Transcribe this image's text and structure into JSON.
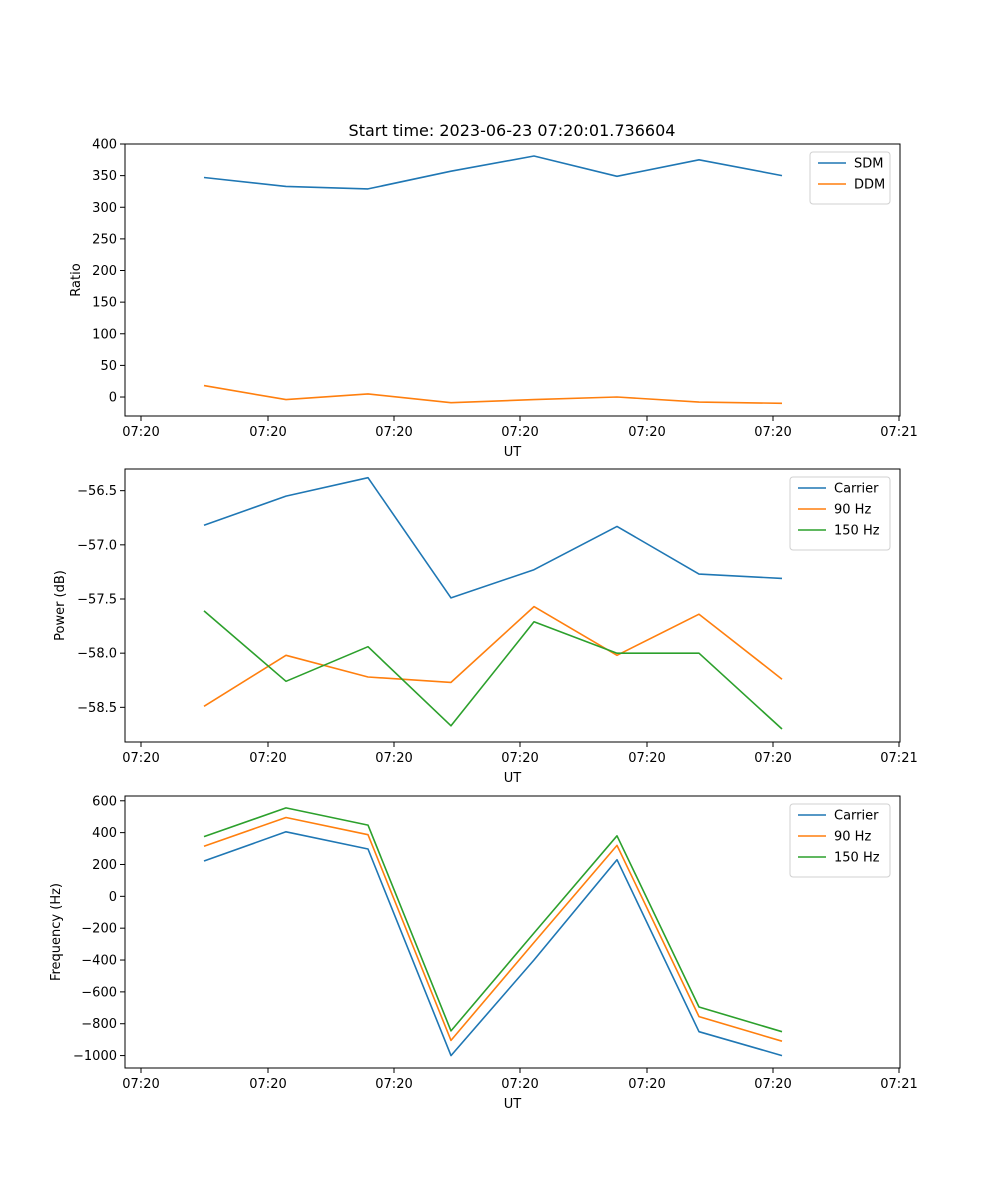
{
  "figure_title": "Start time: 2023-06-23 07:20:01.736604",
  "colors": {
    "blue": "#1f77b4",
    "orange": "#ff7f0e",
    "green": "#2ca02c"
  },
  "chart_data": [
    {
      "type": "line",
      "xlabel": "UT",
      "ylabel": "Ratio",
      "x_tick_labels": [
        "07:20",
        "07:20",
        "07:20",
        "07:20",
        "07:20",
        "07:20",
        "07:21"
      ],
      "ylim": [
        -30,
        400
      ],
      "yticks": [
        0,
        50,
        100,
        150,
        200,
        250,
        300,
        350,
        400
      ],
      "ytick_labels": [
        "0",
        "50",
        "100",
        "150",
        "200",
        "250",
        "300",
        "350",
        "400"
      ],
      "legend_position": "upper-right",
      "series": [
        {
          "name": "SDM",
          "color": "#1f77b4",
          "values": [
            347,
            333,
            329,
            357,
            381,
            349,
            375,
            350
          ]
        },
        {
          "name": "DDM",
          "color": "#ff7f0e",
          "values": [
            18,
            -4,
            5,
            -9,
            -4,
            0,
            -8,
            -10
          ]
        }
      ]
    },
    {
      "type": "line",
      "xlabel": "UT",
      "ylabel": "Power (dB)",
      "x_tick_labels": [
        "07:20",
        "07:20",
        "07:20",
        "07:20",
        "07:20",
        "07:20",
        "07:21"
      ],
      "ylim": [
        -58.82,
        -56.3
      ],
      "yticks": [
        -58.5,
        -58.0,
        -57.5,
        -57.0,
        -56.5
      ],
      "ytick_labels": [
        "−58.5",
        "−58.0",
        "−57.5",
        "−57.0",
        "−56.5"
      ],
      "legend_position": "upper-right",
      "series": [
        {
          "name": "Carrier",
          "color": "#1f77b4",
          "values": [
            -56.82,
            -56.55,
            -56.38,
            -57.49,
            -57.23,
            -56.83,
            -57.27,
            -57.31
          ]
        },
        {
          "name": "90 Hz",
          "color": "#ff7f0e",
          "values": [
            -58.49,
            -58.02,
            -58.22,
            -58.27,
            -57.57,
            -58.02,
            -57.64,
            -58.24
          ]
        },
        {
          "name": "150 Hz",
          "color": "#2ca02c",
          "values": [
            -57.61,
            -58.26,
            -57.94,
            -58.67,
            -57.71,
            -58.0,
            -58.0,
            -58.7
          ]
        }
      ]
    },
    {
      "type": "line",
      "xlabel": "UT",
      "ylabel": "Frequency (Hz)",
      "x_tick_labels": [
        "07:20",
        "07:20",
        "07:20",
        "07:20",
        "07:20",
        "07:20",
        "07:21"
      ],
      "ylim": [
        -1078,
        630
      ],
      "yticks": [
        -1000,
        -800,
        -600,
        -400,
        -200,
        0,
        200,
        400,
        600
      ],
      "ytick_labels": [
        "−1000",
        "−800",
        "−600",
        "−400",
        "−200",
        "0",
        "200",
        "400",
        "600"
      ],
      "legend_position": "upper-right",
      "series": [
        {
          "name": "Carrier",
          "color": "#1f77b4",
          "values": [
            222,
            405,
            297,
            -1000,
            -400,
            230,
            -850,
            -1000
          ]
        },
        {
          "name": "90 Hz",
          "color": "#ff7f0e",
          "values": [
            315,
            495,
            387,
            -905,
            -290,
            320,
            -755,
            -910
          ]
        },
        {
          "name": "150 Hz",
          "color": "#2ca02c",
          "values": [
            375,
            555,
            447,
            -845,
            -230,
            380,
            -695,
            -850
          ]
        }
      ]
    }
  ]
}
